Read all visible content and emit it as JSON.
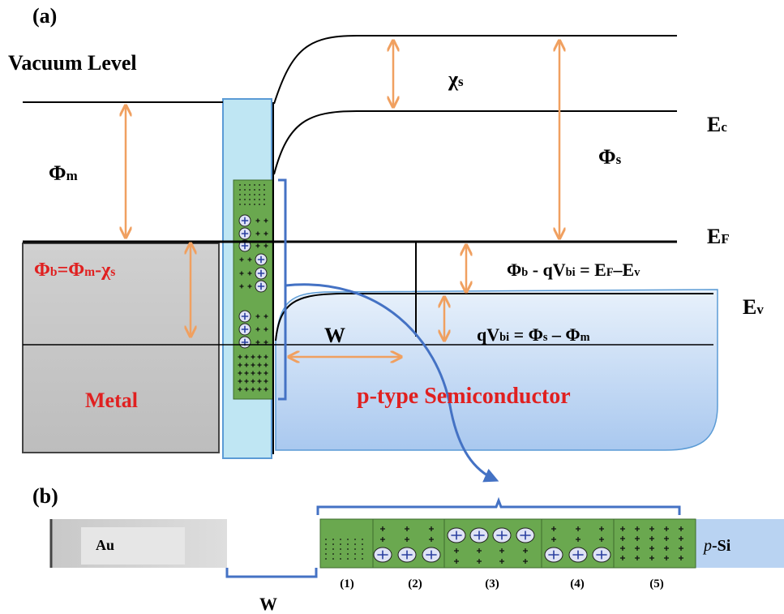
{
  "panel_a": {
    "label": "(a)",
    "vacuum_level": "Vacuum Level",
    "phi_m": [
      "Φ",
      "m"
    ],
    "chi_s": [
      "χ",
      "s"
    ],
    "e_c": [
      "E",
      "c"
    ],
    "phi_s": [
      "Φ",
      "s"
    ],
    "e_f": [
      "E",
      "F"
    ],
    "barrier": [
      "Φ",
      "b",
      "=Φ",
      "m",
      "-χ",
      "s"
    ],
    "barrier_relation": [
      "Φ",
      "b",
      " - qV",
      "bi",
      " = E",
      "F",
      "–E",
      "v"
    ],
    "e_v": [
      "E",
      "v"
    ],
    "width": "W",
    "built_in": [
      "qV",
      "bi",
      " = Φ",
      "s",
      " – Φ",
      "m"
    ],
    "metal": "Metal",
    "semiconductor": "p-type Semiconductor"
  },
  "panel_b": {
    "label": "(b)",
    "metal": "Au",
    "width": "W",
    "semiconductor": [
      "p",
      "-Si"
    ],
    "regions": [
      "(1)",
      "(2)",
      "(3)",
      "(4)",
      "(5)"
    ]
  }
}
